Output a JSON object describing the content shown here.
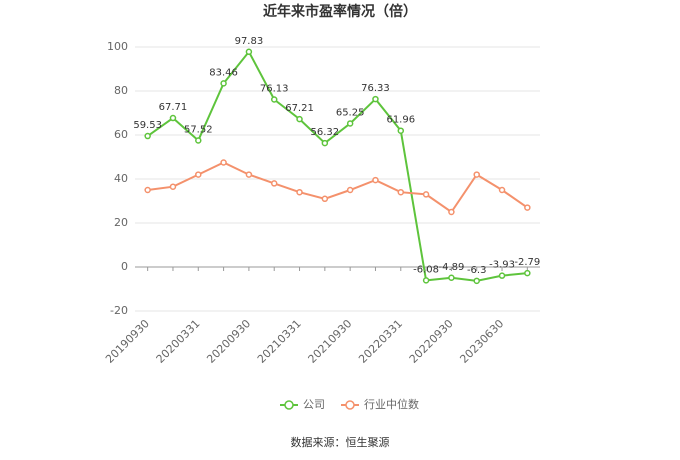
{
  "chart_data": {
    "type": "line",
    "title": "近年来市盈率情况（倍）",
    "categories": [
      "20190930",
      null,
      "20200331",
      null,
      "20200930",
      null,
      "20210331",
      null,
      "20210930",
      null,
      "20220331",
      null,
      "20220930",
      null,
      "20230630",
      null
    ],
    "series": [
      {
        "name": "公司",
        "color": "#5ec43c",
        "values": [
          59.53,
          67.71,
          57.52,
          83.46,
          97.83,
          76.13,
          67.21,
          56.32,
          65.25,
          76.33,
          61.96,
          -6.08,
          -4.89,
          -6.3,
          -3.93,
          -2.79
        ]
      },
      {
        "name": "行业中位数",
        "color": "#f4916c",
        "values": [
          35,
          36.5,
          42,
          47.5,
          42,
          38,
          34,
          31,
          35,
          39.5,
          34,
          33,
          25,
          42,
          35,
          27
        ]
      }
    ],
    "ylim": [
      -20,
      100
    ],
    "yticks": [
      -20,
      0,
      20,
      40,
      60,
      80,
      100
    ],
    "grid": true,
    "source": "数据来源：恒生聚源"
  }
}
